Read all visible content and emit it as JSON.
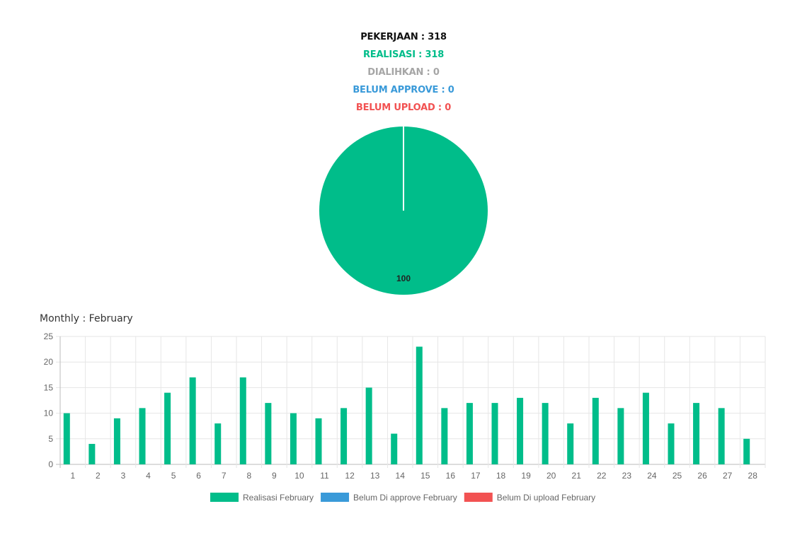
{
  "summary": {
    "pekerjaan": "PEKERJAAN : 318",
    "realisasi": "REALISASI : 318",
    "dialihkan": "DIALIHKAN : 0",
    "belum_approve": "BELUM APPROVE : 0",
    "belum_upload": "BELUM UPLOAD : 0"
  },
  "colors": {
    "pekerjaan": "#111111",
    "realisasi": "#00bd8a",
    "dialihkan": "#a6a6a6",
    "belum_approve": "#3a9ad9",
    "belum_upload": "#f25252",
    "grid": "#e6e6e6",
    "tick": "#666666"
  },
  "monthly_title": "Monthly : February",
  "chart_data": [
    {
      "type": "pie",
      "values": [
        100
      ],
      "data_labels": [
        "100"
      ],
      "colors": [
        "#00bd8a"
      ]
    },
    {
      "type": "bar",
      "categories": [
        "1",
        "2",
        "3",
        "4",
        "5",
        "6",
        "7",
        "8",
        "9",
        "10",
        "11",
        "12",
        "13",
        "14",
        "15",
        "16",
        "17",
        "18",
        "19",
        "20",
        "21",
        "22",
        "23",
        "24",
        "25",
        "26",
        "27",
        "28"
      ],
      "series": [
        {
          "name": "Realisasi February",
          "color": "#00bd8a",
          "values": [
            10,
            4,
            9,
            11,
            14,
            17,
            8,
            17,
            12,
            10,
            9,
            11,
            15,
            6,
            23,
            11,
            12,
            12,
            13,
            12,
            8,
            13,
            11,
            14,
            8,
            12,
            11,
            5
          ]
        },
        {
          "name": "Belum Di approve February",
          "color": "#3a9ad9",
          "values": [
            0,
            0,
            0,
            0,
            0,
            0,
            0,
            0,
            0,
            0,
            0,
            0,
            0,
            0,
            0,
            0,
            0,
            0,
            0,
            0,
            0,
            0,
            0,
            0,
            0,
            0,
            0,
            0
          ]
        },
        {
          "name": "Belum Di upload February",
          "color": "#f25252",
          "values": [
            0,
            0,
            0,
            0,
            0,
            0,
            0,
            0,
            0,
            0,
            0,
            0,
            0,
            0,
            0,
            0,
            0,
            0,
            0,
            0,
            0,
            0,
            0,
            0,
            0,
            0,
            0,
            0
          ]
        }
      ],
      "ylim": [
        0,
        25
      ],
      "yticks": [
        "0",
        "5",
        "10",
        "15",
        "20",
        "25"
      ],
      "grid": true,
      "legend": "bottom"
    }
  ]
}
